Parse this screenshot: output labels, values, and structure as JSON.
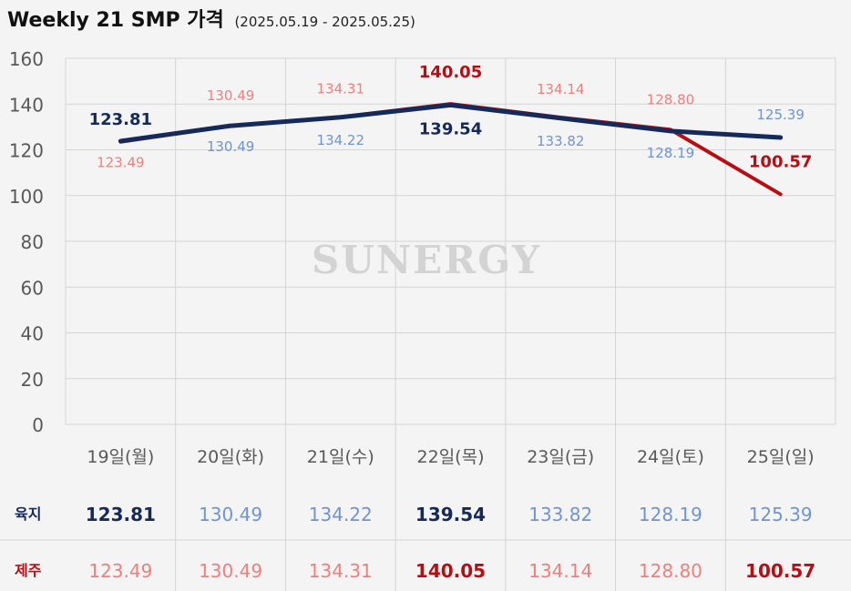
{
  "title": {
    "main": "Weekly 21 SMP 가격",
    "sub": "(2025.05.19 - 2025.05.25)"
  },
  "watermark": "SUNERGY",
  "colors": {
    "land_line": "#152a5a",
    "land_label_light": "#6f94d4",
    "jeju_line": "#b80d12",
    "jeju_label_light": "#ef7f7b",
    "grid": "#d4d4d4",
    "background": "#f4f4f4"
  },
  "table": {
    "land_label": "육지",
    "jeju_label": "제주"
  },
  "chart_data": {
    "type": "line",
    "title": "Weekly 21 SMP 가격",
    "subtitle": "(2025.05.19 - 2025.05.25)",
    "categories": [
      "19일(월)",
      "20일(화)",
      "21일(수)",
      "22일(목)",
      "23일(금)",
      "24일(토)",
      "25일(일)"
    ],
    "ylim": [
      0,
      160
    ],
    "yticks": [
      0,
      20,
      40,
      60,
      80,
      100,
      120,
      140,
      160
    ],
    "grid": true,
    "series": [
      {
        "name": "육지",
        "values": [
          123.81,
          130.49,
          134.22,
          139.54,
          133.82,
          128.19,
          125.39
        ],
        "labels": [
          "123.81",
          "130.49",
          "134.22",
          "139.54",
          "133.82",
          "128.19",
          "125.39"
        ],
        "emphasis": [
          true,
          false,
          false,
          true,
          false,
          false,
          false
        ]
      },
      {
        "name": "제주",
        "values": [
          123.49,
          130.49,
          134.31,
          140.05,
          134.14,
          128.8,
          100.57
        ],
        "labels": [
          "123.49",
          "130.49",
          "134.31",
          "140.05",
          "134.14",
          "128.80",
          "100.57"
        ],
        "emphasis": [
          false,
          false,
          false,
          true,
          false,
          false,
          true
        ]
      }
    ]
  }
}
